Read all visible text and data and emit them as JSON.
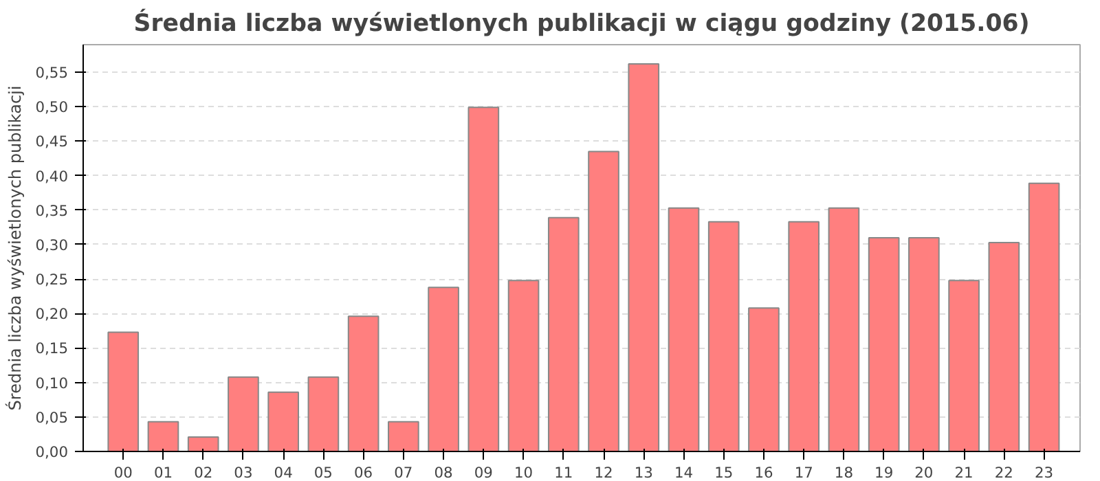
{
  "chart_data": {
    "type": "bar",
    "title": "Średnia liczba wyświetlonych publikacji w ciągu godziny (2015.06)",
    "ylabel": "Średnia liczba wyświetlonych publikacji",
    "categories": [
      "00",
      "01",
      "02",
      "03",
      "04",
      "05",
      "06",
      "07",
      "08",
      "09",
      "10",
      "11",
      "12",
      "13",
      "14",
      "15",
      "16",
      "17",
      "18",
      "19",
      "20",
      "21",
      "22",
      "23"
    ],
    "values": [
      0.173,
      0.043,
      0.021,
      0.108,
      0.086,
      0.108,
      0.196,
      0.043,
      0.238,
      0.499,
      0.248,
      0.339,
      0.435,
      0.562,
      0.353,
      0.333,
      0.208,
      0.333,
      0.353,
      0.31,
      0.31,
      0.248,
      0.303,
      0.389
    ],
    "color": "#ff7f7f",
    "ylim": [
      0,
      0.59
    ],
    "yticks": [
      {
        "value": 0,
        "label": "0,00"
      },
      {
        "value": 0.05,
        "label": "0,05"
      },
      {
        "value": 0.1,
        "label": "0,10"
      },
      {
        "value": 0.15,
        "label": "0,15"
      },
      {
        "value": 0.2,
        "label": "0,20"
      },
      {
        "value": 0.25,
        "label": "0,25"
      },
      {
        "value": 0.3,
        "label": "0,30"
      },
      {
        "value": 0.35,
        "label": "0,35"
      },
      {
        "value": 0.4,
        "label": "0,40"
      },
      {
        "value": 0.45,
        "label": "0,45"
      },
      {
        "value": 0.5,
        "label": "0,50"
      },
      {
        "value": 0.55,
        "label": "0,55"
      }
    ],
    "grid": "y"
  }
}
